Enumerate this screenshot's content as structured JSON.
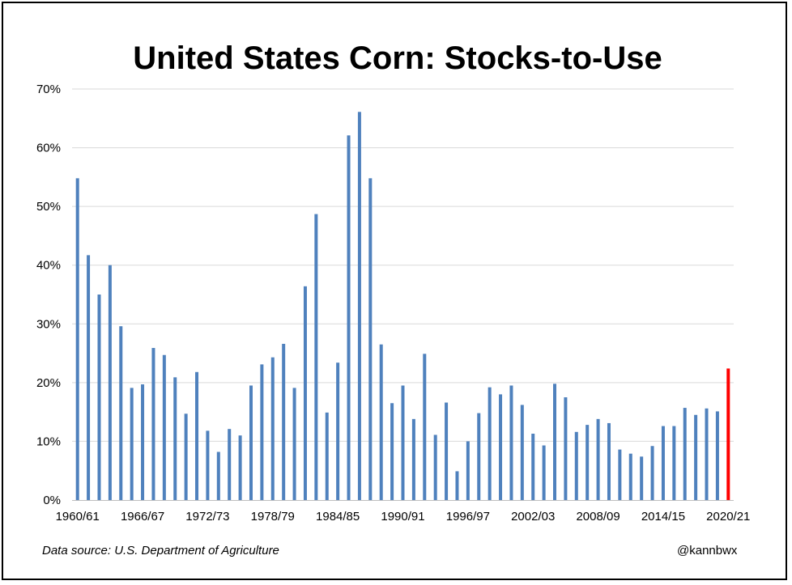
{
  "chart_data": {
    "type": "bar",
    "title": "United States Corn: Stocks-to-Use",
    "xlabel": "",
    "ylabel": "",
    "ylim": [
      0,
      70
    ],
    "yticks": [
      "0%",
      "10%",
      "20%",
      "30%",
      "40%",
      "50%",
      "60%",
      "70%"
    ],
    "grid": true,
    "legend": "none",
    "colors": {
      "bar": "#4f81bd",
      "highlight": "#ff0000",
      "grid": "#d9d9d9"
    },
    "categories": [
      "1960/61",
      "1961/62",
      "1962/63",
      "1963/64",
      "1964/65",
      "1965/66",
      "1966/67",
      "1967/68",
      "1968/69",
      "1969/70",
      "1970/71",
      "1971/72",
      "1972/73",
      "1973/74",
      "1974/75",
      "1975/76",
      "1976/77",
      "1977/78",
      "1978/79",
      "1979/80",
      "1980/81",
      "1981/82",
      "1982/83",
      "1983/84",
      "1984/85",
      "1985/86",
      "1986/87",
      "1987/88",
      "1988/89",
      "1989/90",
      "1990/91",
      "1991/92",
      "1992/93",
      "1993/94",
      "1994/95",
      "1995/96",
      "1996/97",
      "1997/98",
      "1998/99",
      "1999/00",
      "2000/01",
      "2001/02",
      "2002/03",
      "2003/04",
      "2004/05",
      "2005/06",
      "2006/07",
      "2007/08",
      "2008/09",
      "2009/10",
      "2010/11",
      "2011/12",
      "2012/13",
      "2013/14",
      "2014/15",
      "2015/16",
      "2016/17",
      "2017/18",
      "2018/19",
      "2019/20",
      "2020/21"
    ],
    "tick_labels": [
      "1960/61",
      "1966/67",
      "1972/73",
      "1978/79",
      "1984/85",
      "1990/91",
      "1996/97",
      "2002/03",
      "2008/09",
      "2014/15",
      "2020/21"
    ],
    "values": [
      54.8,
      41.7,
      35.0,
      40.0,
      29.6,
      19.1,
      19.7,
      25.9,
      24.7,
      20.9,
      14.7,
      21.8,
      11.8,
      8.2,
      12.1,
      11.0,
      19.5,
      23.1,
      24.3,
      26.6,
      19.1,
      36.4,
      48.7,
      14.9,
      23.4,
      62.1,
      66.1,
      54.8,
      26.5,
      16.5,
      19.5,
      13.8,
      24.9,
      11.1,
      16.6,
      4.9,
      10.0,
      14.8,
      19.2,
      18.0,
      19.5,
      16.2,
      11.3,
      9.3,
      19.8,
      17.5,
      11.6,
      12.8,
      13.8,
      13.1,
      8.6,
      7.9,
      7.4,
      9.2,
      12.6,
      12.6,
      15.7,
      14.5,
      15.6,
      15.1,
      22.4
    ],
    "highlight_index": 60
  },
  "footer": {
    "source": "Data source: U.S. Department of Agriculture",
    "handle": "@kannbwx"
  }
}
